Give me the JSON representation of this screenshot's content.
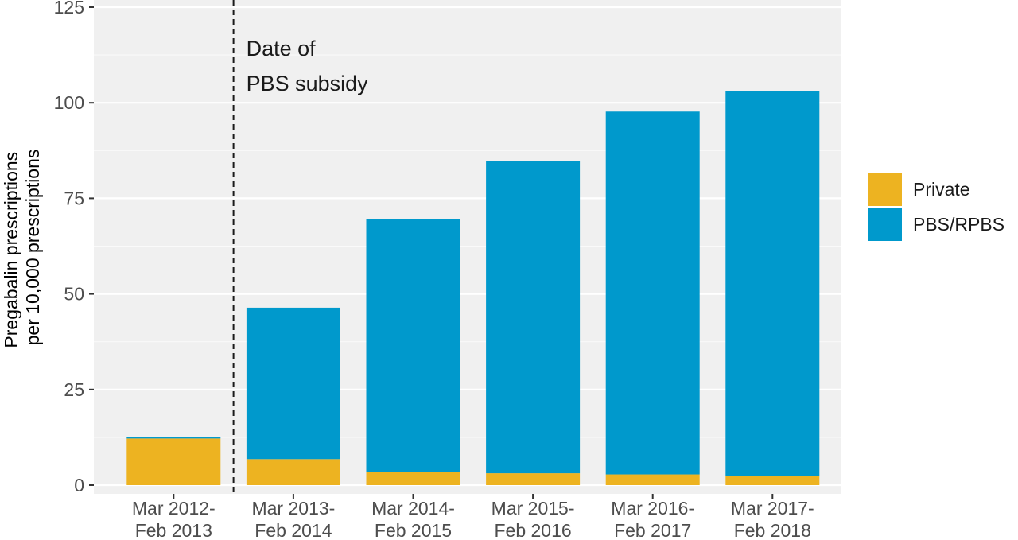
{
  "chart_data": {
    "type": "bar",
    "stacked": true,
    "title": "",
    "xlabel": "",
    "ylabel": [
      "Pregabalin prescriptions",
      "per 10,000 prescriptions"
    ],
    "ylim": [
      0,
      125
    ],
    "yticks": [
      0,
      25,
      50,
      75,
      100,
      125
    ],
    "grid": true,
    "legend_position": "right",
    "categories": [
      [
        "Mar 2012-",
        "Feb 2013"
      ],
      [
        "Mar 2013-",
        "Feb 2014"
      ],
      [
        "Mar 2014-",
        "Feb 2015"
      ],
      [
        "Mar 2015-",
        "Feb 2016"
      ],
      [
        "Mar 2016-",
        "Feb 2017"
      ],
      [
        "Mar 2017-",
        "Feb 2018"
      ]
    ],
    "series": [
      {
        "name": "Private",
        "color": "#EDB321",
        "values": [
          12.2,
          6.8,
          3.5,
          3.1,
          2.8,
          2.4
        ]
      },
      {
        "name": "PBS/RPBS",
        "color": "#0099CC",
        "values": [
          0.3,
          39.6,
          66.1,
          81.6,
          94.9,
          100.6
        ]
      }
    ],
    "legend_order": [
      "Private",
      "PBS/RPBS"
    ],
    "annotation": {
      "text": [
        "Date of",
        "PBS subsidy"
      ],
      "between_categories": [
        0,
        1
      ],
      "line_style": "dashed"
    }
  }
}
